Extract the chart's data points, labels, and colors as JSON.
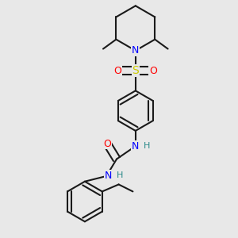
{
  "background_color": "#e8e8e8",
  "bond_color": "#1a1a1a",
  "bond_width": 1.5,
  "atom_colors": {
    "N": "#0000ff",
    "O": "#ff0000",
    "S": "#cccc00",
    "C": "#1a1a1a",
    "H": "#2a8a8a"
  },
  "figsize": [
    3.0,
    3.0
  ],
  "dpi": 100,
  "xlim": [
    0.0,
    1.0
  ],
  "ylim": [
    0.0,
    1.0
  ]
}
